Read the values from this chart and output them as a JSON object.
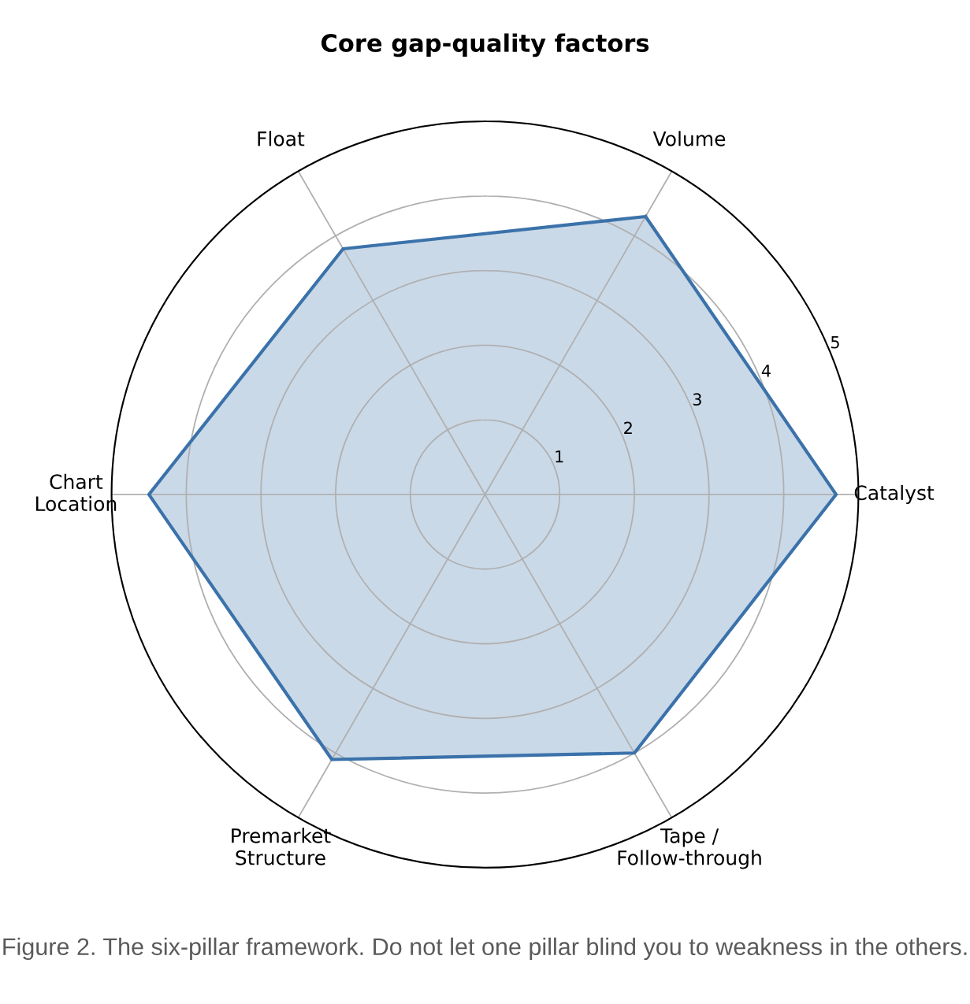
{
  "chart_data": {
    "type": "radar",
    "title": "Core gap-quality factors",
    "categories": [
      "Volume",
      "Catalyst",
      "Tape /\nFollow-through",
      "Premarket\nStructure",
      "Chart\nLocation",
      "Float"
    ],
    "series": [
      {
        "color": "#3b72aa",
        "values": [
          4.3,
          4.7,
          4.0,
          4.1,
          4.5,
          3.8
        ]
      }
    ],
    "ylim": [
      0,
      5
    ],
    "yticks": [
      1,
      2,
      3,
      4,
      5
    ],
    "grid": true,
    "marker": "none",
    "line_style": "solid",
    "annotations": [
      "Figure 2. The six-pillar framework. Do not let one pillar blind you to weakness in the others."
    ]
  }
}
